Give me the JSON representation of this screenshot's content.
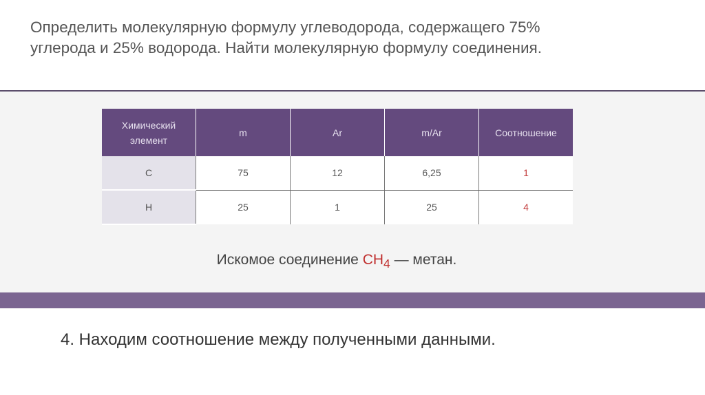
{
  "title": "Определить молекулярную формулу углеводорода, содержащего 75% углерода и 25% водорода. Найти молекулярную формулу соединения.",
  "table": {
    "headers": [
      "Химический элемент",
      "m",
      "Ar",
      "m/Ar",
      "Соотношение"
    ],
    "rows": [
      [
        "C",
        "75",
        "12",
        "6,25",
        "1"
      ],
      [
        "H",
        "25",
        "1",
        "25",
        "4"
      ]
    ]
  },
  "answer": {
    "prefix": "Искомое соединение ",
    "formula": "CH",
    "subscript": "4",
    "suffix": " — метан."
  },
  "step": "4. Находим соотношение между полученными данными.",
  "colors": {
    "header": "#644a7e",
    "band": "#7b6591",
    "highlight": "#c0302f"
  }
}
